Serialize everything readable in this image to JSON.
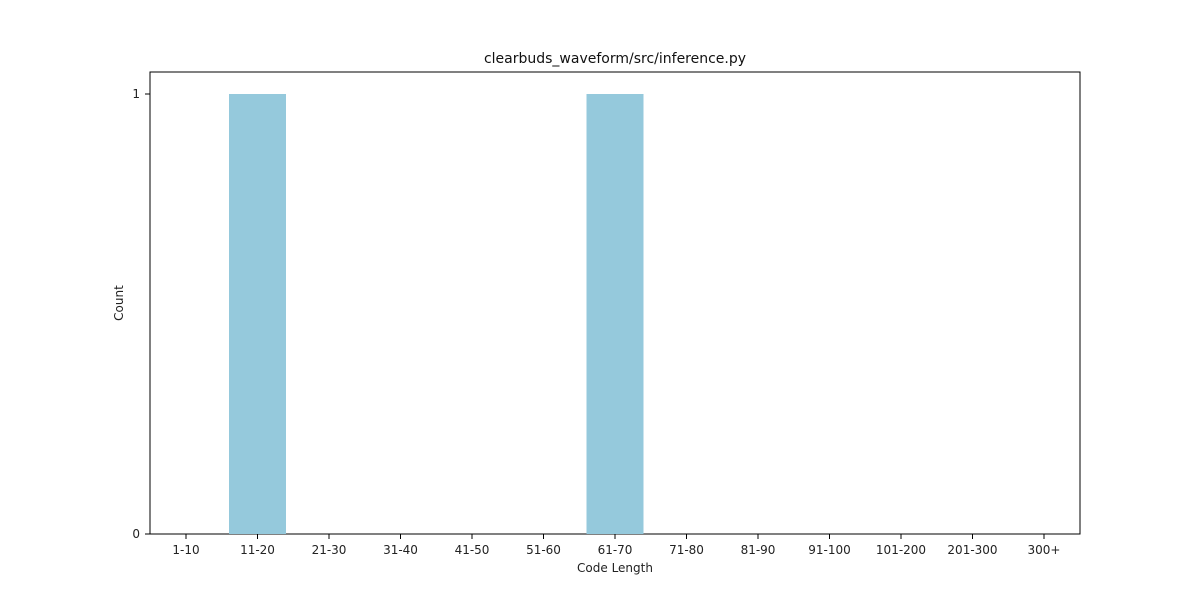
{
  "chart_data": {
    "type": "bar",
    "title": "clearbuds_waveform/src/inference.py",
    "xlabel": "Code Length",
    "ylabel": "Count",
    "categories": [
      "1-10",
      "11-20",
      "21-30",
      "31-40",
      "41-50",
      "51-60",
      "61-70",
      "71-80",
      "81-90",
      "91-100",
      "101-200",
      "201-300",
      "300+"
    ],
    "values": [
      0,
      1,
      0,
      0,
      0,
      0,
      1,
      0,
      0,
      0,
      0,
      0,
      0
    ],
    "ylim": [
      0,
      1
    ],
    "yticks": [
      "0",
      "1"
    ],
    "grid": false,
    "legend": "none",
    "bar_color": "#95c9dc"
  }
}
